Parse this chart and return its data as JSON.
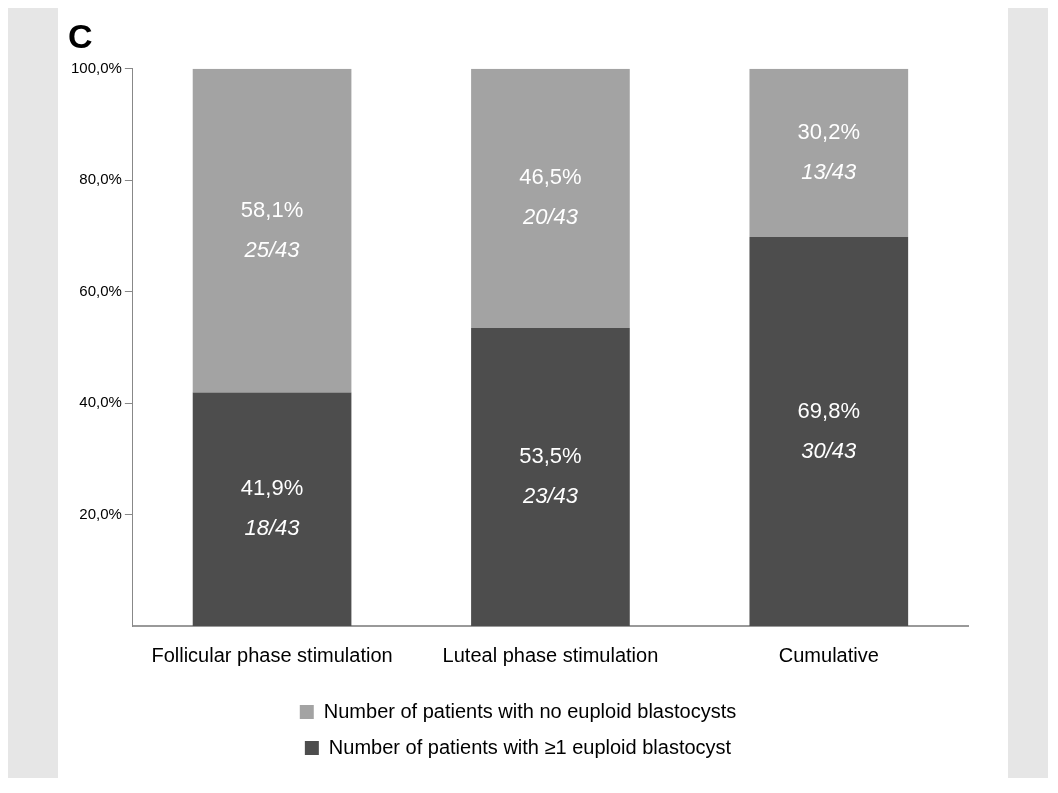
{
  "chart_data": {
    "type": "bar",
    "title": "C",
    "stacked": true,
    "legend": "bottom",
    "grid": false,
    "categories": [
      "Follicular phase stimulation",
      "Luteal phase stimulation",
      "Cumulative"
    ],
    "series": [
      {
        "name": "Number of patients with ≥1 euploid blastocyst",
        "color": "#4d4d4d",
        "values": [
          41.9,
          53.5,
          69.8
        ],
        "value_labels": [
          "41,9%\n18/43",
          "53,5%\n23/43",
          "69,8%\n30/43"
        ]
      },
      {
        "name": "Number of patients with no euploid blastocysts",
        "color": "#a3a3a3",
        "values": [
          58.1,
          46.5,
          30.2
        ],
        "value_labels": [
          "58,1%\n25/43",
          "46,5%\n20/43",
          "30,2%\n13/43"
        ]
      }
    ],
    "ylim": [
      0,
      100
    ],
    "yticks": [
      {
        "value": 20,
        "label": "20,0%"
      },
      {
        "value": 40,
        "label": "40,0%"
      },
      {
        "value": 60,
        "label": "60,0%"
      },
      {
        "value": 80,
        "label": "80,0%"
      },
      {
        "value": 100,
        "label": "100,0%"
      }
    ]
  }
}
